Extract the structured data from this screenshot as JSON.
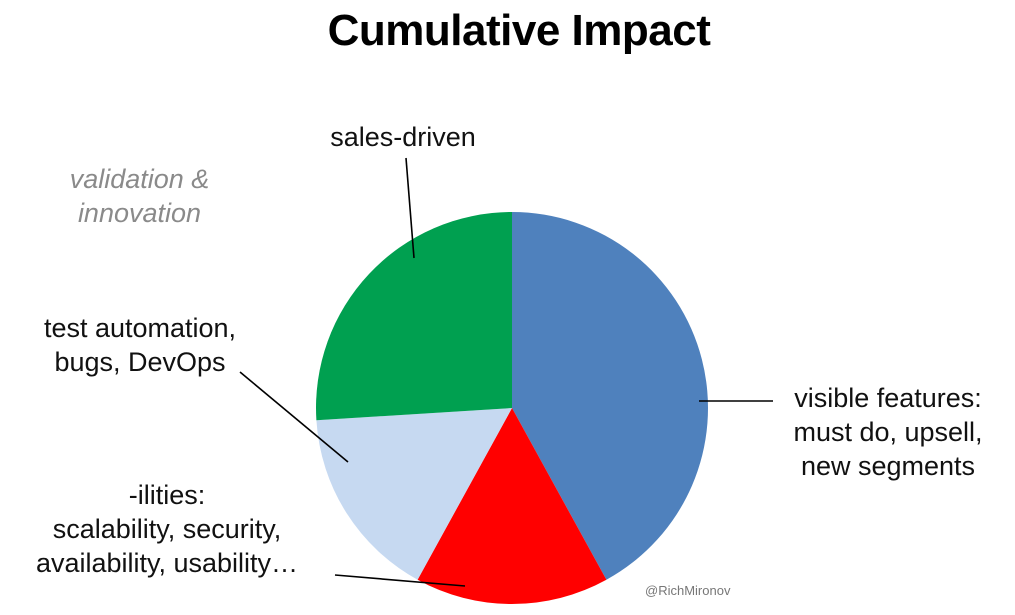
{
  "title": "Cumulative Impact",
  "credit": "@RichMironov",
  "chart_data": {
    "type": "pie",
    "title": "Cumulative Impact",
    "start_angle_deg": 0,
    "direction": "clockwise",
    "slices": [
      {
        "label": "visible features: must do, upsell, new segments",
        "lines": [
          "visible features:",
          "must do, upsell,",
          "new segments"
        ],
        "value": 42,
        "color": "#4F81BD"
      },
      {
        "label": "-ilities: scalability, security, availability, usability…",
        "lines": [
          "-ilities:",
          "scalability, security,",
          "availability, usability…"
        ],
        "value": 16,
        "color": "#FF0000"
      },
      {
        "label": "test automation, bugs, DevOps",
        "lines": [
          "test automation,",
          "bugs, DevOps"
        ],
        "value": 16,
        "color": "#C6D9F1"
      },
      {
        "label": "sales-driven",
        "lines": [
          "sales-driven"
        ],
        "value": 26,
        "color": "#00A050"
      }
    ],
    "ghost_label": {
      "lines": [
        "validation &",
        "innovation"
      ],
      "color": "#8A8A8A"
    }
  }
}
